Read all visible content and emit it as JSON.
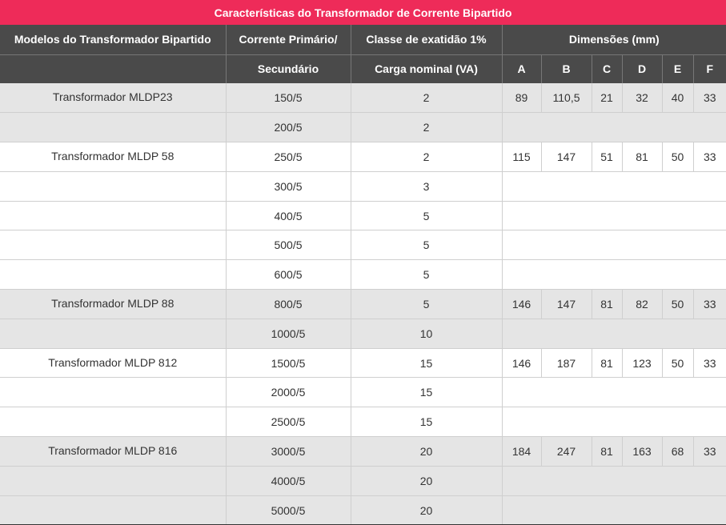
{
  "table": {
    "title": "Características do Transformador de Corrente Bipartido",
    "headers": {
      "model": "Modelos do Transformador Bipartido",
      "current_line1": "Corrente Primário/",
      "current_line2": "Secundário",
      "class_line1": "Classe de exatidão 1%",
      "class_line2": "Carga nominal (VA)",
      "dimensions": "Dimensões (mm)",
      "dim_a": "A",
      "dim_b": "B",
      "dim_c": "C",
      "dim_d": "D",
      "dim_e": "E",
      "dim_f": "F"
    },
    "rows": [
      {
        "model": "Transformador MLDP23",
        "current": "150/5",
        "load": "2",
        "a": "89",
        "b": "110,5",
        "c": "21",
        "d": "32",
        "e": "40",
        "f": "33"
      },
      {
        "model": "",
        "current": "200/5",
        "load": "2"
      },
      {
        "model": "Transformador MLDP 58",
        "current": "250/5",
        "load": "2",
        "a": "115",
        "b": "147",
        "c": "51",
        "d": "81",
        "e": "50",
        "f": "33"
      },
      {
        "model": "",
        "current": "300/5",
        "load": "3"
      },
      {
        "model": "",
        "current": "400/5",
        "load": "5"
      },
      {
        "model": "",
        "current": "500/5",
        "load": "5"
      },
      {
        "model": "",
        "current": "600/5",
        "load": "5"
      },
      {
        "model": "Transformador MLDP 88",
        "current": "800/5",
        "load": "5",
        "a": "146",
        "b": "147",
        "c": "81",
        "d": "82",
        "e": "50",
        "f": "33"
      },
      {
        "model": "",
        "current": "1000/5",
        "load": "10"
      },
      {
        "model": "Transformador MLDP 812",
        "current": "1500/5",
        "load": "15",
        "a": "146",
        "b": "187",
        "c": "81",
        "d": "123",
        "e": "50",
        "f": "33"
      },
      {
        "model": "",
        "current": "2000/5",
        "load": "15"
      },
      {
        "model": "",
        "current": "2500/5",
        "load": "15"
      },
      {
        "model": "Transformador MLDP 816",
        "current": "3000/5",
        "load": "20",
        "a": "184",
        "b": "247",
        "c": "81",
        "d": "163",
        "e": "68",
        "f": "33"
      },
      {
        "model": "",
        "current": "4000/5",
        "load": "20"
      },
      {
        "model": "",
        "current": "5000/5",
        "load": "20"
      }
    ]
  },
  "colors": {
    "title_bar": "#ee2b59",
    "header_bg": "#4a4a4a",
    "shaded_row": "#e5e5e5",
    "plain_row": "#ffffff"
  }
}
